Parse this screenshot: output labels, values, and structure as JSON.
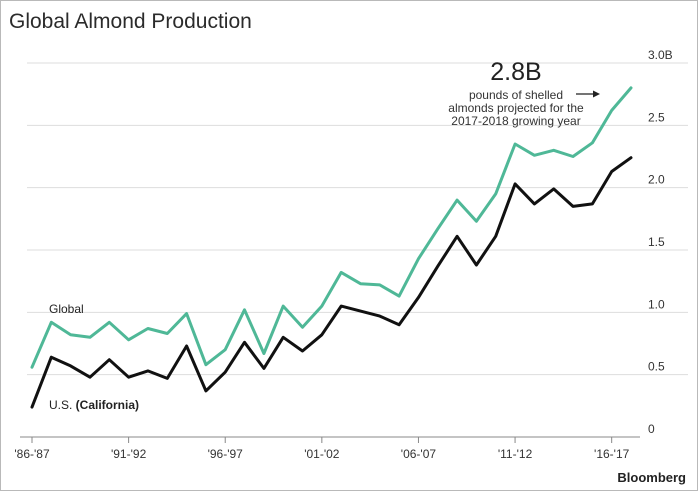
{
  "title": "Global Almond Production",
  "credit": "Bloomberg",
  "colors": {
    "global": "#4fb897",
    "us": "#111111",
    "axis": "#888888",
    "grid": "#dddddd"
  },
  "chart_data": {
    "type": "line",
    "title": "Global Almond Production",
    "xlabel": "",
    "ylabel": "",
    "x_tick_labels": [
      "'86-'87",
      "'91-'92",
      "'96-'97",
      "'01-'02",
      "'06-'07",
      "'11-'12",
      "'16-'17"
    ],
    "y_tick_labels": [
      "3.0B",
      "2.5",
      "2.0",
      "1.5",
      "1.0",
      "0.5",
      "0"
    ],
    "ylim": [
      0,
      3.0
    ],
    "grid": true,
    "series": [
      {
        "name": "Global",
        "values": [
          0.56,
          0.92,
          0.82,
          0.8,
          0.92,
          0.78,
          0.87,
          0.83,
          0.99,
          0.58,
          0.7,
          1.02,
          0.67,
          1.05,
          0.88,
          1.05,
          1.32,
          1.23,
          1.22,
          1.13,
          1.43,
          1.67,
          1.9,
          1.73,
          1.95,
          2.35,
          2.26,
          2.3,
          2.25,
          2.36,
          2.62,
          2.8
        ]
      },
      {
        "name": "U.S. (California)",
        "values": [
          0.24,
          0.64,
          0.57,
          0.48,
          0.62,
          0.48,
          0.53,
          0.47,
          0.73,
          0.37,
          0.52,
          0.76,
          0.55,
          0.8,
          0.69,
          0.82,
          1.05,
          1.01,
          0.97,
          0.9,
          1.12,
          1.37,
          1.61,
          1.38,
          1.61,
          2.03,
          1.87,
          1.99,
          1.85,
          1.87,
          2.13,
          2.24
        ]
      }
    ],
    "annotations": [
      {
        "big": "2.8B",
        "lines": [
          "pounds of shelled",
          "almonds projected for the",
          "2017-2018 growing year"
        ]
      }
    ]
  }
}
